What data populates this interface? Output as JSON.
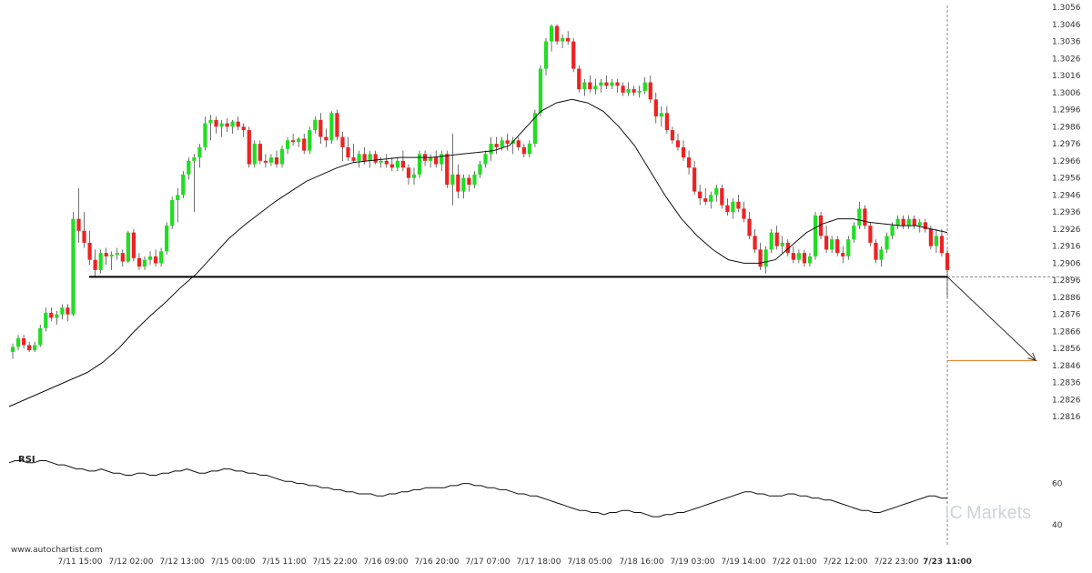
{
  "colors": {
    "up": "#22dd22",
    "down": "#ee2222",
    "wick": "#111111",
    "ma": "#111111",
    "support": "#000000",
    "target": "#e07b1a",
    "arrow": "#333333",
    "rsi": "#111111",
    "watermark": "#cfd4d8"
  },
  "watermark": {
    "prefix": "IC",
    "brand": "Markets"
  },
  "credit": "www.autochartist.com",
  "rsi_label": "RSI",
  "chart_data": {
    "type": "candlestick",
    "price_ylim": [
      1.2806,
      1.3056
    ],
    "price_ticks": [
      "1.3056",
      "1.3046",
      "1.3036",
      "1.3026",
      "1.3016",
      "1.3006",
      "1.2996",
      "1.2986",
      "1.2976",
      "1.2966",
      "1.2956",
      "1.2946",
      "1.2936",
      "1.2926",
      "1.2916",
      "1.2906",
      "1.2896",
      "1.2886",
      "1.2876",
      "1.2866",
      "1.2856",
      "1.2846",
      "1.2836",
      "1.2826",
      "1.2816"
    ],
    "x_labels": [
      "7/11 15:00",
      "7/12 02:00",
      "7/12 13:00",
      "7/15 00:00",
      "7/15 11:00",
      "7/15 22:00",
      "7/16 09:00",
      "7/16 20:00",
      "7/17 07:00",
      "7/17 18:00",
      "7/18 05:00",
      "7/18 16:00",
      "7/19 03:00",
      "7/19 14:00",
      "7/22 01:00",
      "7/22 12:00",
      "7/22 23:00",
      "7/23 11:00"
    ],
    "candles": [
      [
        1.2854,
        1.2859,
        1.285,
        1.2857
      ],
      [
        1.2857,
        1.2864,
        1.2855,
        1.2862
      ],
      [
        1.2862,
        1.2864,
        1.2856,
        1.2858
      ],
      [
        1.2858,
        1.286,
        1.2854,
        1.2855
      ],
      [
        1.2855,
        1.286,
        1.2854,
        1.2858
      ],
      [
        1.2858,
        1.287,
        1.2857,
        1.2868
      ],
      [
        1.2868,
        1.288,
        1.2866,
        1.2877
      ],
      [
        1.2877,
        1.288,
        1.2872,
        1.2874
      ],
      [
        1.2874,
        1.2878,
        1.287,
        1.2876
      ],
      [
        1.2876,
        1.2882,
        1.2873,
        1.288
      ],
      [
        1.288,
        1.2882,
        1.2872,
        1.2876
      ],
      [
        1.2876,
        1.2936,
        1.2875,
        1.2932
      ],
      [
        1.2932,
        1.295,
        1.2918,
        1.2925
      ],
      [
        1.2925,
        1.2936,
        1.2915,
        1.2918
      ],
      [
        1.2918,
        1.2925,
        1.2905,
        1.2908
      ],
      [
        1.2908,
        1.2914,
        1.2898,
        1.2902
      ],
      [
        1.2902,
        1.2914,
        1.29,
        1.2912
      ],
      [
        1.2912,
        1.2915,
        1.2905,
        1.291
      ],
      [
        1.291,
        1.2913,
        1.2902,
        1.2911
      ],
      [
        1.2911,
        1.2915,
        1.2908,
        1.2912
      ],
      [
        1.2912,
        1.2914,
        1.2904,
        1.2907
      ],
      [
        1.2907,
        1.2925,
        1.2906,
        1.2924
      ],
      [
        1.2924,
        1.2926,
        1.2907,
        1.2909
      ],
      [
        1.2909,
        1.2912,
        1.2902,
        1.2904
      ],
      [
        1.2904,
        1.291,
        1.2902,
        1.2908
      ],
      [
        1.2908,
        1.2913,
        1.2905,
        1.291
      ],
      [
        1.291,
        1.2914,
        1.2904,
        1.2906
      ],
      [
        1.2906,
        1.2915,
        1.2904,
        1.2913
      ],
      [
        1.2913,
        1.293,
        1.2911,
        1.2928
      ],
      [
        1.2928,
        1.2945,
        1.2926,
        1.2943
      ],
      [
        1.2943,
        1.295,
        1.293,
        1.2946
      ],
      [
        1.2946,
        1.296,
        1.2944,
        1.2958
      ],
      [
        1.2958,
        1.2968,
        1.2955,
        1.2966
      ],
      [
        1.2966,
        1.297,
        1.2936,
        1.2968
      ],
      [
        1.2968,
        1.2976,
        1.2962,
        1.2974
      ],
      [
        1.2974,
        1.2992,
        1.2972,
        1.2988
      ],
      [
        1.2988,
        1.2993,
        1.2978,
        1.299
      ],
      [
        1.299,
        1.2992,
        1.2982,
        1.2986
      ],
      [
        1.2986,
        1.299,
        1.298,
        1.2988
      ],
      [
        1.2988,
        1.2991,
        1.2983,
        1.2986
      ],
      [
        1.2986,
        1.299,
        1.2982,
        1.2989
      ],
      [
        1.2989,
        1.2992,
        1.2984,
        1.2986
      ],
      [
        1.2986,
        1.2988,
        1.298,
        1.2984
      ],
      [
        1.2984,
        1.2986,
        1.2962,
        1.2964
      ],
      [
        1.2964,
        1.2978,
        1.2962,
        1.2976
      ],
      [
        1.2976,
        1.2978,
        1.2964,
        1.2966
      ],
      [
        1.2966,
        1.297,
        1.2962,
        1.2965
      ],
      [
        1.2965,
        1.297,
        1.2963,
        1.2968
      ],
      [
        1.2968,
        1.2972,
        1.2962,
        1.2964
      ],
      [
        1.2964,
        1.2975,
        1.2962,
        1.2973
      ],
      [
        1.2973,
        1.298,
        1.297,
        1.2978
      ],
      [
        1.2978,
        1.2982,
        1.2975,
        1.2977
      ],
      [
        1.2977,
        1.298,
        1.2974,
        1.2979
      ],
      [
        1.2979,
        1.2982,
        1.297,
        1.2972
      ],
      [
        1.2972,
        1.2986,
        1.297,
        1.2984
      ],
      [
        1.2984,
        1.2992,
        1.2982,
        1.299
      ],
      [
        1.299,
        1.2994,
        1.2976,
        1.298
      ],
      [
        1.298,
        1.2985,
        1.2974,
        1.2978
      ],
      [
        1.2978,
        1.2995,
        1.2976,
        1.2994
      ],
      [
        1.2994,
        1.2996,
        1.2978,
        1.298
      ],
      [
        1.298,
        1.2983,
        1.2966,
        1.2974
      ],
      [
        1.2974,
        1.298,
        1.2966,
        1.2968
      ],
      [
        1.2968,
        1.2976,
        1.2965,
        1.2966
      ],
      [
        1.2966,
        1.2972,
        1.2962,
        1.297
      ],
      [
        1.297,
        1.2974,
        1.2964,
        1.2966
      ],
      [
        1.2966,
        1.2972,
        1.2962,
        1.297
      ],
      [
        1.297,
        1.2972,
        1.2964,
        1.2965
      ],
      [
        1.2965,
        1.2968,
        1.2962,
        1.2966
      ],
      [
        1.2966,
        1.297,
        1.2962,
        1.2964
      ],
      [
        1.2964,
        1.2968,
        1.296,
        1.2962
      ],
      [
        1.2962,
        1.2968,
        1.296,
        1.2966
      ],
      [
        1.2966,
        1.2972,
        1.296,
        1.2962
      ],
      [
        1.2962,
        1.2964,
        1.2952,
        1.2956
      ],
      [
        1.2956,
        1.2962,
        1.2952,
        1.2958
      ],
      [
        1.2958,
        1.2972,
        1.2956,
        1.297
      ],
      [
        1.297,
        1.2972,
        1.2963,
        1.2966
      ],
      [
        1.2966,
        1.297,
        1.2962,
        1.2968
      ],
      [
        1.2968,
        1.2972,
        1.2962,
        1.2964
      ],
      [
        1.2964,
        1.2972,
        1.296,
        1.297
      ],
      [
        1.297,
        1.2972,
        1.295,
        1.2952
      ],
      [
        1.2952,
        1.2982,
        1.294,
        1.2958
      ],
      [
        1.2958,
        1.2964,
        1.2944,
        1.2948
      ],
      [
        1.2948,
        1.2958,
        1.2944,
        1.2956
      ],
      [
        1.2956,
        1.2958,
        1.2948,
        1.2952
      ],
      [
        1.2952,
        1.296,
        1.295,
        1.2958
      ],
      [
        1.2958,
        1.2966,
        1.2956,
        1.2964
      ],
      [
        1.2964,
        1.2972,
        1.2962,
        1.297
      ],
      [
        1.297,
        1.298,
        1.2966,
        1.2976
      ],
      [
        1.2976,
        1.298,
        1.297,
        1.2974
      ],
      [
        1.2974,
        1.298,
        1.2972,
        1.2978
      ],
      [
        1.2978,
        1.2982,
        1.2972,
        1.2976
      ],
      [
        1.2976,
        1.298,
        1.297,
        1.2978
      ],
      [
        1.2978,
        1.298,
        1.2972,
        1.2974
      ],
      [
        1.2974,
        1.2976,
        1.2968,
        1.297
      ],
      [
        1.297,
        1.2978,
        1.2968,
        1.2976
      ],
      [
        1.2976,
        1.2996,
        1.2974,
        1.2994
      ],
      [
        1.2994,
        1.3022,
        1.2992,
        1.302
      ],
      [
        1.302,
        1.3038,
        1.3016,
        1.3036
      ],
      [
        1.3036,
        1.3046,
        1.303,
        1.3045
      ],
      [
        1.3045,
        1.3046,
        1.3034,
        1.3036
      ],
      [
        1.3036,
        1.304,
        1.3032,
        1.3038
      ],
      [
        1.3038,
        1.3042,
        1.3034,
        1.3036
      ],
      [
        1.3036,
        1.3038,
        1.3018,
        1.302
      ],
      [
        1.302,
        1.3022,
        1.3006,
        1.3008
      ],
      [
        1.3008,
        1.3014,
        1.3004,
        1.3012
      ],
      [
        1.3012,
        1.3016,
        1.3006,
        1.3008
      ],
      [
        1.3008,
        1.3014,
        1.3005,
        1.301
      ],
      [
        1.301,
        1.3014,
        1.3006,
        1.3012
      ],
      [
        1.3012,
        1.3016,
        1.3008,
        1.301
      ],
      [
        1.301,
        1.3014,
        1.3008,
        1.3012
      ],
      [
        1.3012,
        1.3014,
        1.3006,
        1.301
      ],
      [
        1.301,
        1.3012,
        1.3004,
        1.3006
      ],
      [
        1.3006,
        1.3012,
        1.3004,
        1.3008
      ],
      [
        1.3008,
        1.301,
        1.3004,
        1.3006
      ],
      [
        1.3006,
        1.301,
        1.3003,
        1.3007
      ],
      [
        1.3007,
        1.3015,
        1.3005,
        1.3012
      ],
      [
        1.3012,
        1.3016,
        1.3,
        1.3002
      ],
      [
        1.3002,
        1.3006,
        1.2988,
        1.2992
      ],
      [
        1.2992,
        1.2998,
        1.2986,
        1.2994
      ],
      [
        1.2994,
        1.2998,
        1.2982,
        1.2984
      ],
      [
        1.2984,
        1.2986,
        1.2976,
        1.2978
      ],
      [
        1.2978,
        1.2982,
        1.2972,
        1.2974
      ],
      [
        1.2974,
        1.2978,
        1.2966,
        1.2968
      ],
      [
        1.2968,
        1.2972,
        1.2958,
        1.2962
      ],
      [
        1.2962,
        1.2966,
        1.2946,
        1.2948
      ],
      [
        1.2948,
        1.2952,
        1.294,
        1.2944
      ],
      [
        1.2944,
        1.295,
        1.294,
        1.2942
      ],
      [
        1.2942,
        1.2948,
        1.2938,
        1.2946
      ],
      [
        1.2946,
        1.2952,
        1.2942,
        1.295
      ],
      [
        1.295,
        1.2952,
        1.2938,
        1.294
      ],
      [
        1.294,
        1.2944,
        1.2934,
        1.2936
      ],
      [
        1.2936,
        1.2944,
        1.2932,
        1.2942
      ],
      [
        1.2942,
        1.2946,
        1.2936,
        1.2938
      ],
      [
        1.2938,
        1.2942,
        1.293,
        1.2932
      ],
      [
        1.2932,
        1.2936,
        1.292,
        1.2922
      ],
      [
        1.2922,
        1.2926,
        1.2912,
        1.2914
      ],
      [
        1.2914,
        1.2918,
        1.2902,
        1.2904
      ],
      [
        1.2904,
        1.2916,
        1.29,
        1.2914
      ],
      [
        1.2914,
        1.2926,
        1.2912,
        1.2924
      ],
      [
        1.2924,
        1.2928,
        1.2914,
        1.2916
      ],
      [
        1.2916,
        1.2922,
        1.2912,
        1.2918
      ],
      [
        1.2918,
        1.292,
        1.291,
        1.2912
      ],
      [
        1.2912,
        1.2916,
        1.2906,
        1.2908
      ],
      [
        1.2908,
        1.2914,
        1.2906,
        1.2912
      ],
      [
        1.2912,
        1.2914,
        1.2904,
        1.2906
      ],
      [
        1.2906,
        1.2912,
        1.2904,
        1.291
      ],
      [
        1.291,
        1.2936,
        1.2908,
        1.2934
      ],
      [
        1.2934,
        1.2936,
        1.292,
        1.2922
      ],
      [
        1.2922,
        1.2928,
        1.2912,
        1.2914
      ],
      [
        1.2914,
        1.2922,
        1.2912,
        1.292
      ],
      [
        1.292,
        1.2922,
        1.291,
        1.2912
      ],
      [
        1.2912,
        1.2916,
        1.2906,
        1.291
      ],
      [
        1.291,
        1.2922,
        1.2908,
        1.292
      ],
      [
        1.292,
        1.293,
        1.2918,
        1.2928
      ],
      [
        1.2928,
        1.2942,
        1.2926,
        1.2938
      ],
      [
        1.2938,
        1.294,
        1.2926,
        1.2928
      ],
      [
        1.2928,
        1.293,
        1.2916,
        1.2918
      ],
      [
        1.2918,
        1.292,
        1.2906,
        1.2908
      ],
      [
        1.2908,
        1.2916,
        1.2904,
        1.2914
      ],
      [
        1.2914,
        1.2924,
        1.2912,
        1.2922
      ],
      [
        1.2922,
        1.293,
        1.292,
        1.2928
      ],
      [
        1.2928,
        1.2934,
        1.2926,
        1.2932
      ],
      [
        1.2932,
        1.2934,
        1.2926,
        1.2928
      ],
      [
        1.2928,
        1.2934,
        1.2926,
        1.2932
      ],
      [
        1.2932,
        1.2934,
        1.2926,
        1.2928
      ],
      [
        1.2928,
        1.2932,
        1.2924,
        1.293
      ],
      [
        1.293,
        1.2932,
        1.2924,
        1.2926
      ],
      [
        1.2926,
        1.2928,
        1.2914,
        1.2916
      ],
      [
        1.2916,
        1.2926,
        1.2912,
        1.2922
      ],
      [
        1.2922,
        1.2926,
        1.291,
        1.2912
      ],
      [
        1.2912,
        1.2914,
        1.2886,
        1.2902
      ]
    ],
    "ma": [
      1.2822,
      1.2826,
      1.283,
      1.2834,
      1.2838,
      1.2842,
      1.2848,
      1.2856,
      1.2866,
      1.2875,
      1.2883,
      1.2892,
      1.29,
      1.291,
      1.292,
      1.2928,
      1.2935,
      1.2942,
      1.2948,
      1.2954,
      1.2958,
      1.2962,
      1.2965,
      1.2966,
      1.2967,
      1.2968,
      1.2968,
      1.2968,
      1.2969,
      1.297,
      1.2971,
      1.2972,
      1.2975,
      1.2985,
      1.2995,
      1.3,
      1.3002,
      1.3,
      1.2995,
      1.2986,
      1.2975,
      1.296,
      1.2945,
      1.2932,
      1.2922,
      1.2914,
      1.2908,
      1.2906,
      1.2906,
      1.2908,
      1.2916,
      1.2924,
      1.2929,
      1.2932,
      1.2932,
      1.293,
      1.2929,
      1.2928,
      1.2928,
      1.2926,
      1.2924
    ],
    "ma_x_fraction": true,
    "support_level": 1.2898,
    "target_level": 1.2849,
    "forecast_arrow": {
      "from": 1.2898,
      "to": 1.2849
    },
    "rsi": {
      "ylim": [
        30,
        80
      ],
      "ticks": [
        "60",
        "40"
      ],
      "values": [
        70,
        71,
        71,
        70,
        70,
        71,
        71,
        70,
        69,
        69,
        68,
        67,
        67,
        66,
        66,
        67,
        66,
        65,
        65,
        64,
        64,
        65,
        65,
        64,
        64,
        65,
        65,
        66,
        66,
        67,
        66,
        65,
        65,
        66,
        66,
        67,
        67,
        66,
        66,
        65,
        65,
        64,
        64,
        63,
        62,
        61,
        61,
        60,
        60,
        59,
        59,
        58,
        58,
        57,
        57,
        56,
        56,
        55,
        55,
        55,
        54,
        54,
        55,
        55,
        56,
        56,
        57,
        57,
        58,
        58,
        58,
        58,
        59,
        59,
        60,
        60,
        59,
        59,
        58,
        58,
        57,
        57,
        56,
        55,
        55,
        54,
        54,
        53,
        52,
        51,
        50,
        49,
        48,
        47,
        47,
        46,
        46,
        45,
        46,
        46,
        47,
        47,
        46,
        46,
        45,
        44,
        44,
        45,
        45,
        46,
        46,
        47,
        48,
        49,
        50,
        51,
        52,
        53,
        54,
        55,
        56,
        56,
        55,
        55,
        54,
        54,
        54,
        55,
        55,
        54,
        54,
        53,
        53,
        52,
        52,
        51,
        50,
        49,
        48,
        47,
        47,
        46,
        46,
        47,
        48,
        49,
        50,
        51,
        52,
        53,
        54,
        54,
        53,
        53
      ]
    }
  }
}
